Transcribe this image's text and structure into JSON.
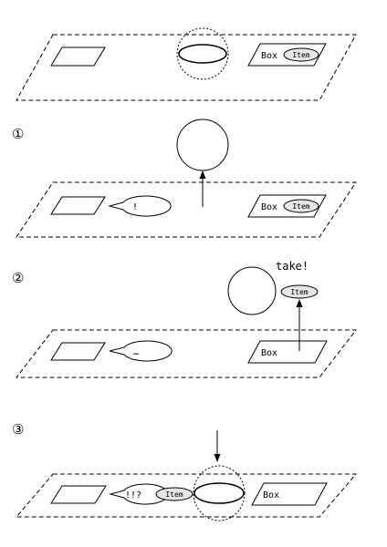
{
  "steps": [
    {
      "label": ""
    },
    {
      "label": "①"
    },
    {
      "label": "②"
    },
    {
      "label": "③"
    }
  ],
  "labels": {
    "box": "Box",
    "item": "Item",
    "bubble_1": "!",
    "bubble_2": "…",
    "bubble_3": "!!?",
    "take": "take!"
  },
  "colors": {
    "stroke": "#000000",
    "background": "#ffffff",
    "item_fill": "#e6e6e6"
  }
}
